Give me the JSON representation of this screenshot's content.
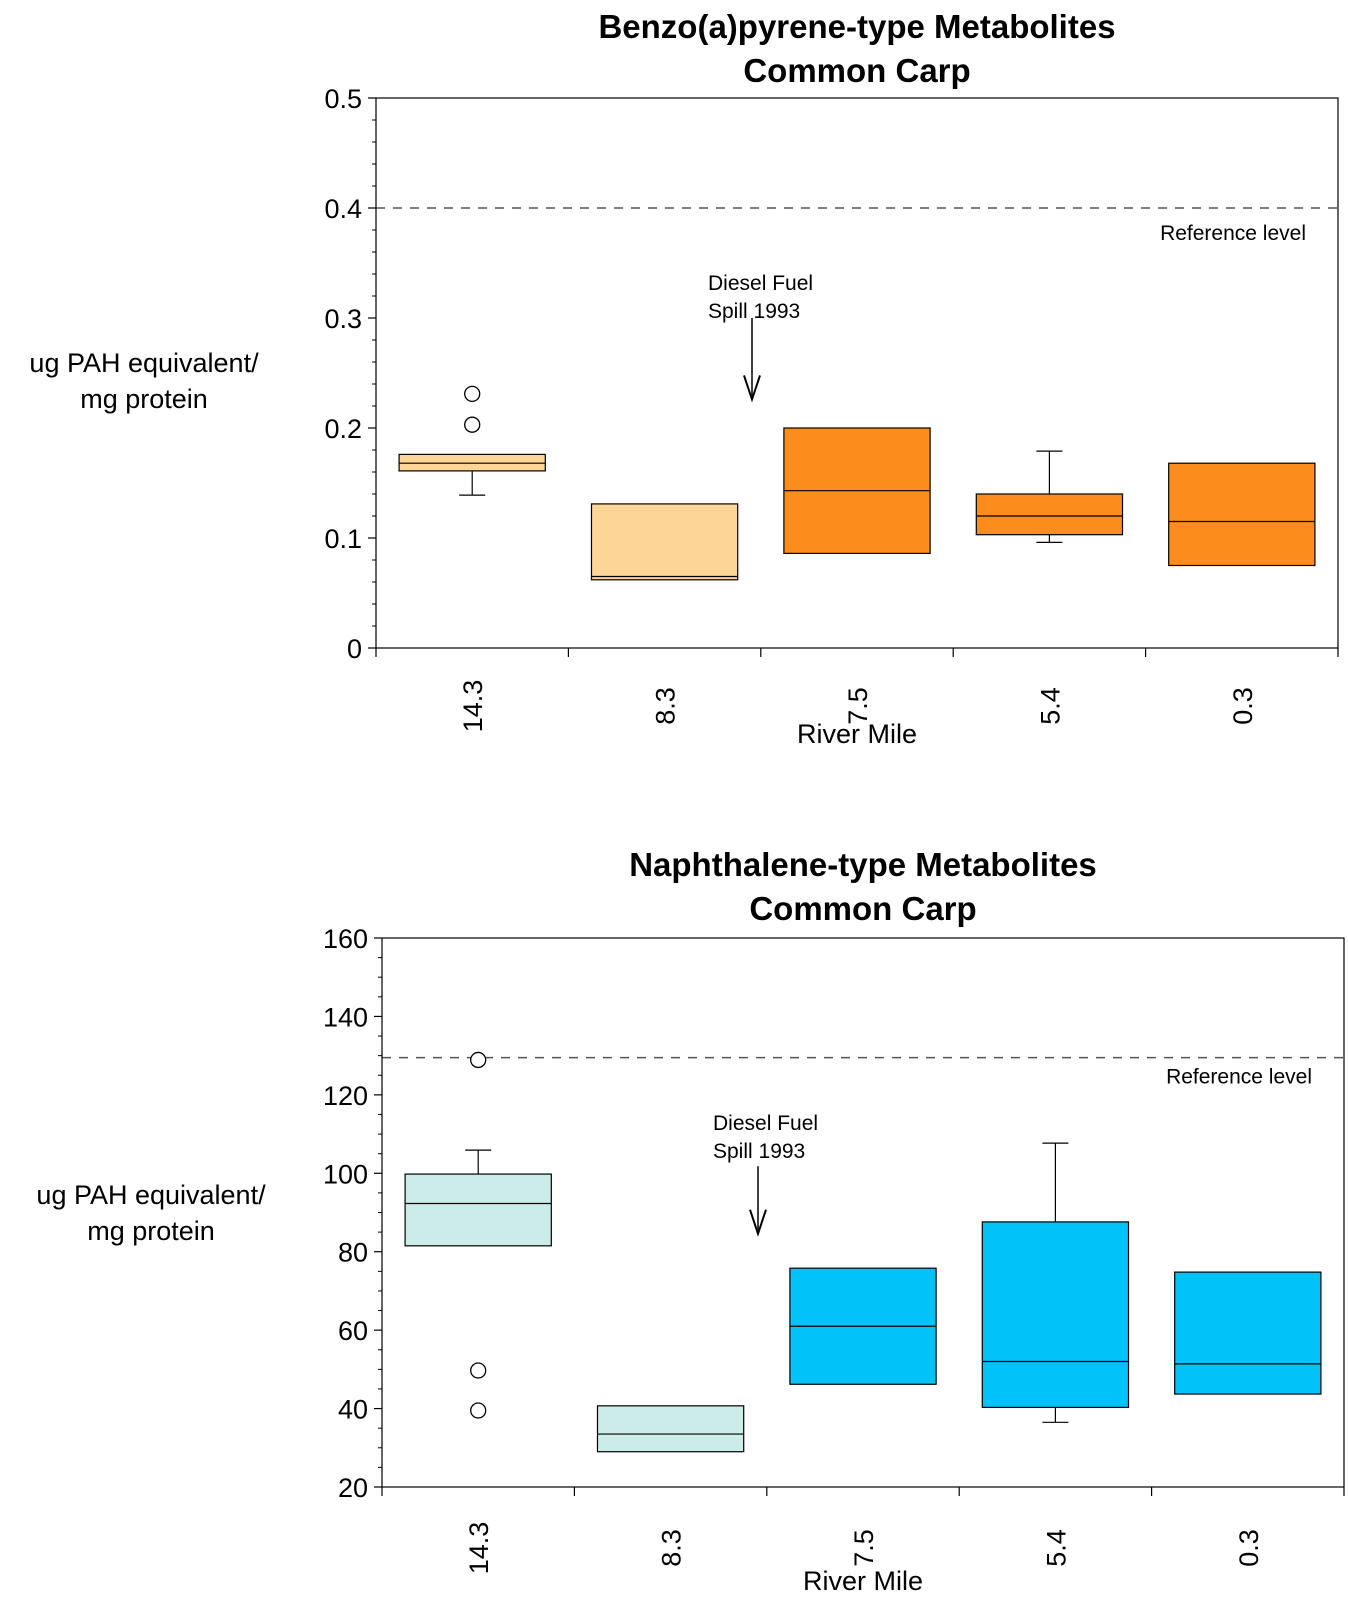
{
  "chart_data": [
    {
      "type": "box",
      "title": [
        "Benzo(a)pyrene-type Metabolites",
        "Common Carp"
      ],
      "xlabel": "River Mile",
      "ylabel": [
        "ug PAH equivalent/",
        "mg protein"
      ],
      "ylim": [
        0,
        0.5
      ],
      "yticks": [
        "0",
        "0.1",
        "0.2",
        "0.3",
        "0.4",
        "0.5"
      ],
      "ytick_values": [
        0,
        0.1,
        0.2,
        0.3,
        0.4,
        0.5
      ],
      "minor_ticks_per_major": 5,
      "categories": [
        "14.3",
        "8.3",
        "7.5",
        "5.4",
        "0.3"
      ],
      "boxes": [
        {
          "category": "14.3",
          "q1": 0.161,
          "median": 0.168,
          "q3": 0.176,
          "whisker_low": 0.139,
          "whisker_high": 0.176,
          "outliers": [
            0.203,
            0.231
          ],
          "color": "#fdd597"
        },
        {
          "category": "8.3",
          "q1": 0.062,
          "median": 0.065,
          "q3": 0.131,
          "whisker_low": 0.062,
          "whisker_high": 0.131,
          "outliers": [],
          "color": "#fdd597"
        },
        {
          "category": "7.5",
          "q1": 0.086,
          "median": 0.143,
          "q3": 0.2,
          "whisker_low": 0.086,
          "whisker_high": 0.2,
          "outliers": [],
          "color": "#fc8c1c"
        },
        {
          "category": "5.4",
          "q1": 0.103,
          "median": 0.12,
          "q3": 0.14,
          "whisker_low": 0.096,
          "whisker_high": 0.179,
          "outliers": [],
          "color": "#fc8c1c"
        },
        {
          "category": "0.3",
          "q1": 0.075,
          "median": 0.115,
          "q3": 0.168,
          "whisker_low": 0.075,
          "whisker_high": 0.168,
          "outliers": [],
          "color": "#fc8c1c"
        }
      ],
      "reference_line": {
        "value": 0.4,
        "label": "Reference level"
      },
      "annotation": {
        "lines": [
          "Diesel Fuel",
          "Spill 1993"
        ],
        "arrow_from": 0.3,
        "arrow_to": 0.226
      }
    },
    {
      "type": "box",
      "title": [
        "Naphthalene-type Metabolites",
        "Common Carp"
      ],
      "xlabel": "River Mile",
      "ylabel": [
        "ug PAH equivalent/",
        "mg protein"
      ],
      "ylim": [
        20,
        160
      ],
      "yticks": [
        "20",
        "40",
        "60",
        "80",
        "100",
        "120",
        "140",
        "160"
      ],
      "ytick_values": [
        20,
        40,
        60,
        80,
        100,
        120,
        140,
        160
      ],
      "minor_ticks_per_major": 4,
      "categories": [
        "14.3",
        "8.3",
        "7.5",
        "5.4",
        "0.3"
      ],
      "boxes": [
        {
          "category": "14.3",
          "q1": 81.5,
          "median": 92.3,
          "q3": 99.8,
          "whisker_low": 81.5,
          "whisker_high": 105.9,
          "outliers": [
            39.5,
            49.7,
            128.9
          ],
          "color": "#ccecea"
        },
        {
          "category": "8.3",
          "q1": 29.0,
          "median": 33.5,
          "q3": 40.7,
          "whisker_low": 29.0,
          "whisker_high": 40.7,
          "outliers": [],
          "color": "#ccecea"
        },
        {
          "category": "7.5",
          "q1": 46.2,
          "median": 61.0,
          "q3": 75.8,
          "whisker_low": 46.2,
          "whisker_high": 75.8,
          "outliers": [],
          "color": "#01c2f9"
        },
        {
          "category": "5.4",
          "q1": 40.3,
          "median": 52.0,
          "q3": 87.6,
          "whisker_low": 36.5,
          "whisker_high": 107.7,
          "outliers": [],
          "color": "#01c2f9"
        },
        {
          "category": "0.3",
          "q1": 43.7,
          "median": 51.4,
          "q3": 74.8,
          "whisker_low": 43.7,
          "whisker_high": 74.8,
          "outliers": [],
          "color": "#01c2f9"
        }
      ],
      "reference_line": {
        "value": 129.5,
        "label": "Reference level"
      },
      "annotation": {
        "lines": [
          "Diesel Fuel",
          "Spill 1993"
        ],
        "arrow_from": 101.8,
        "arrow_to": 84.6
      }
    }
  ]
}
